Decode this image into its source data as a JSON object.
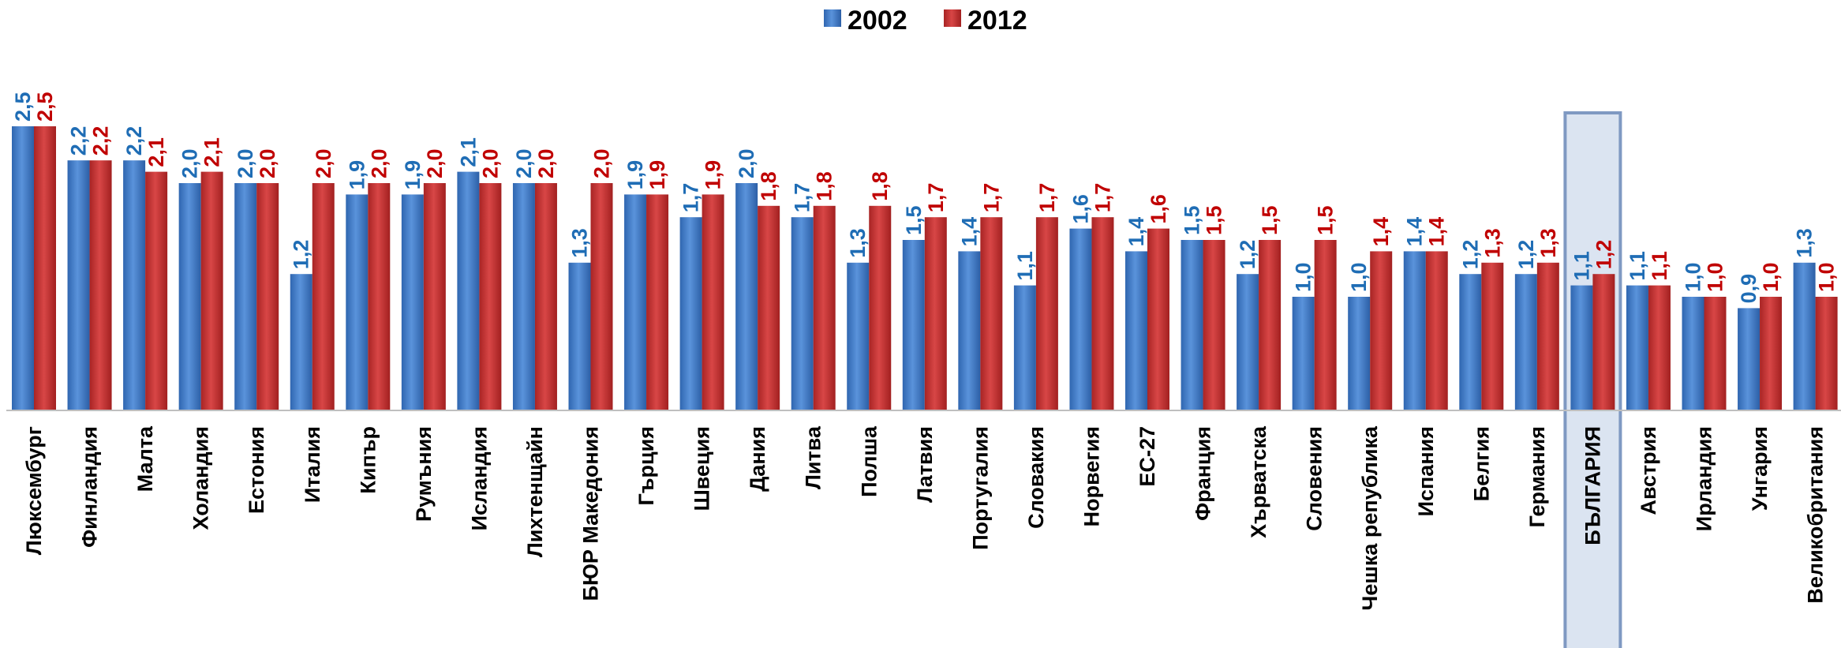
{
  "chart_data": {
    "type": "bar",
    "title": "",
    "xlabel": "",
    "ylabel": "",
    "ylim": [
      0,
      2.5
    ],
    "grid": false,
    "legend_position": "top-center",
    "highlight_category": "БЪЛГАРИЯ",
    "categories": [
      "Люксембург",
      "Финландия",
      "Малта",
      "Холандия",
      "Естония",
      "Италия",
      "Кипър",
      "Румъния",
      "Исландия",
      "Лихтенщайн",
      "БЮР Македония",
      "Гърция",
      "Швеция",
      "Дания",
      "Литва",
      "Полша",
      "Латвия",
      "Португалия",
      "Словакия",
      "Норвегия",
      "ЕС-27",
      "Франция",
      "Хърватска",
      "Словения",
      "Чешка република",
      "Испания",
      "Белгия",
      "Германия",
      "БЪЛГАРИЯ",
      "Австрия",
      "Ирландия",
      "Унгария",
      "Великобритания"
    ],
    "series": [
      {
        "name": "2002",
        "color": "#3f7fcf",
        "label_color": "#1f6db5",
        "values": [
          2.5,
          2.2,
          2.2,
          2.0,
          2.0,
          1.2,
          1.9,
          1.9,
          2.1,
          2.0,
          1.3,
          1.9,
          1.7,
          2.0,
          1.7,
          1.3,
          1.5,
          1.4,
          1.1,
          1.6,
          1.4,
          1.5,
          1.2,
          1.0,
          1.0,
          1.4,
          1.2,
          1.2,
          1.1,
          1.1,
          1.0,
          0.9,
          1.3
        ],
        "labels": [
          "2,5",
          "2,2",
          "2,2",
          "2,0",
          "2,0",
          "1,2",
          "1,9",
          "1,9",
          "2,1",
          "2,0",
          "1,3",
          "1,9",
          "1,7",
          "2,0",
          "1,7",
          "1,3",
          "1,5",
          "1,4",
          "1,1",
          "1,6",
          "1,4",
          "1,5",
          "1,2",
          "1,0",
          "1,0",
          "1,4",
          "1,2",
          "1,2",
          "1,1",
          "1,1",
          "1,0",
          "0,9",
          "1,3"
        ]
      },
      {
        "name": "2012",
        "color": "#c83434",
        "label_color": "#c00000",
        "values": [
          2.5,
          2.2,
          2.1,
          2.1,
          2.0,
          2.0,
          2.0,
          2.0,
          2.0,
          2.0,
          2.0,
          1.9,
          1.9,
          1.8,
          1.8,
          1.8,
          1.7,
          1.7,
          1.7,
          1.7,
          1.6,
          1.5,
          1.5,
          1.5,
          1.4,
          1.4,
          1.3,
          1.3,
          1.2,
          1.1,
          1.0,
          1.0,
          1.0
        ],
        "labels": [
          "2,5",
          "2,2",
          "2,1",
          "2,1",
          "2,0",
          "2,0",
          "2,0",
          "2,0",
          "2,0",
          "2,0",
          "2,0",
          "1,9",
          "1,9",
          "1,8",
          "1,8",
          "1,8",
          "1,7",
          "1,7",
          "1,7",
          "1,7",
          "1,6",
          "1,5",
          "1,5",
          "1,5",
          "1,4",
          "1,4",
          "1,3",
          "1,3",
          "1,2",
          "1,1",
          "1,0",
          "1,0",
          "1,0"
        ]
      }
    ]
  }
}
